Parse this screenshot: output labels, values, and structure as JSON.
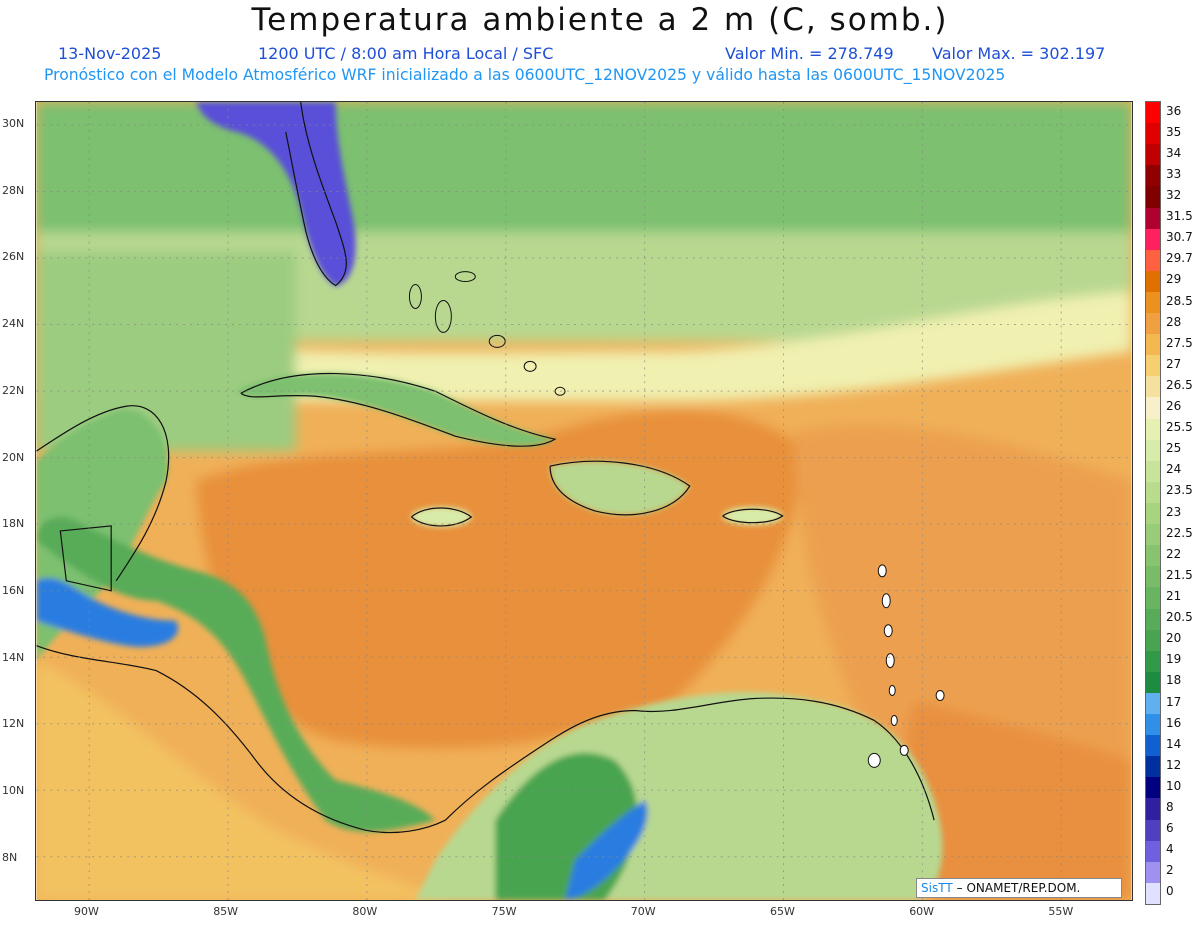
{
  "header": {
    "title": "Temperatura ambiente a 2 m (C, somb.)",
    "date": "13-Nov-2025",
    "time": "1200 UTC / 8:00 am Hora Local / SFC",
    "min_label": "Valor Min. = 278.749",
    "max_label": "Valor Max. = 302.197",
    "subtitle": "Pronóstico con el Modelo Atmosférico WRF inicializado a las 0600UTC_12NOV2025 y válido hasta las  0600UTC_15NOV2025"
  },
  "map": {
    "lat_ticks": [
      "30N",
      "28N",
      "26N",
      "24N",
      "22N",
      "20N",
      "18N",
      "16N",
      "14N",
      "12N",
      "10N",
      "8N"
    ],
    "lon_ticks": [
      "90W",
      "85W",
      "80W",
      "75W",
      "70W",
      "65W",
      "60W",
      "55W"
    ],
    "colors": {
      "sea_warm": "#e8903a",
      "sea_mid": "#f3b65a",
      "sea_cool": "#f7dc8a",
      "pale": "#f0f0b0",
      "lightgreen": "#b8d890",
      "green": "#7cc070",
      "darkgreen": "#2f9e52",
      "blue": "#2a7de0",
      "purple": "#5a4fd8",
      "coast": "#111111"
    }
  },
  "colorbar": {
    "labels": [
      "36",
      "35",
      "34",
      "33",
      "32",
      "31.5",
      "30.7",
      "29.7",
      "29",
      "28.5",
      "28",
      "27.5",
      "27",
      "26.5",
      "26",
      "25.5",
      "25",
      "24",
      "23.5",
      "23",
      "22.5",
      "22",
      "21.5",
      "21",
      "20.5",
      "20",
      "19",
      "18",
      "17",
      "16",
      "14",
      "12",
      "10",
      "8",
      "6",
      "4",
      "2",
      "0"
    ],
    "colors": [
      "#ff0000",
      "#e00000",
      "#c00000",
      "#900000",
      "#800000",
      "#b00030",
      "#ff2060",
      "#ff6040",
      "#e07000",
      "#ec9020",
      "#f0a040",
      "#f4b850",
      "#f6cf70",
      "#f6e0a0",
      "#f8f0c8",
      "#e6f0b0",
      "#d8ecaa",
      "#c8e49a",
      "#b8dc8c",
      "#a8d480",
      "#98cc78",
      "#88c470",
      "#78bc68",
      "#68b460",
      "#58ac58",
      "#48a450",
      "#309a48",
      "#1e8c40",
      "#60b0f0",
      "#3090e8",
      "#1060d0",
      "#0030a0",
      "#000080",
      "#3020a0",
      "#5040c0",
      "#7060e0",
      "#a090f0",
      "#e0e0ff"
    ]
  },
  "credit": {
    "brand": "SisTT",
    "org": "– ONAMET/REP.DOM."
  }
}
